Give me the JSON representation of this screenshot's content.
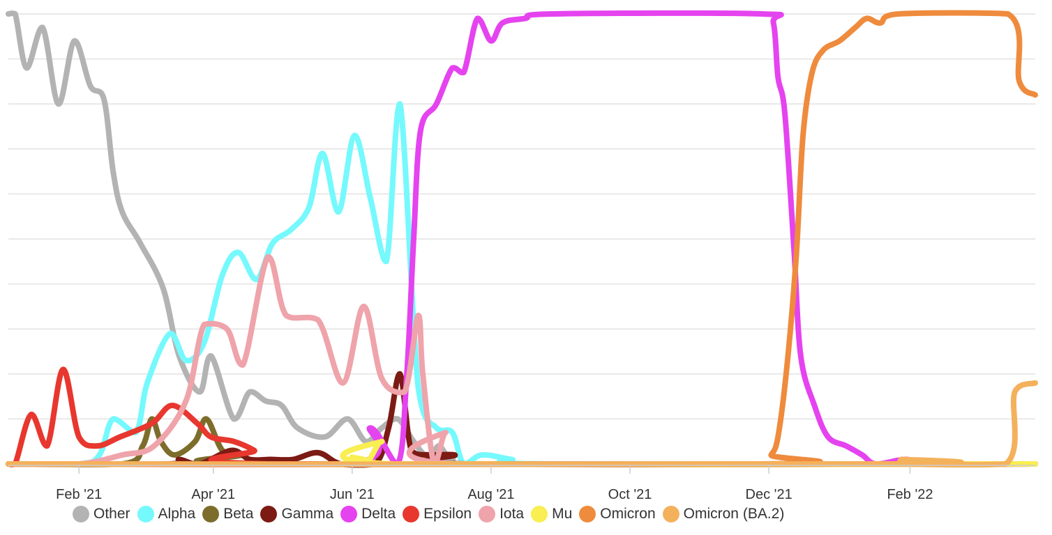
{
  "chart_data": {
    "type": "line",
    "title": "",
    "xlabel": "",
    "ylabel": "",
    "x_ticks": [
      "Feb '21",
      "Apr '21",
      "Jun '21",
      "Aug '21",
      "Oct '21",
      "Dec '21",
      "Feb '22"
    ],
    "x_range": [
      "2021-01-01",
      "2022-03-28"
    ],
    "y_range": [
      0,
      1
    ],
    "grid": "horizontal",
    "legend_position": "bottom",
    "series": [
      {
        "name": "Other",
        "color": "#b3b3b3",
        "points": [
          [
            "2021-01-01",
            1.0
          ],
          [
            "2021-01-04",
            1.0
          ],
          [
            "2021-01-09",
            0.88
          ],
          [
            "2021-01-16",
            0.97
          ],
          [
            "2021-01-23",
            0.8
          ],
          [
            "2021-01-30",
            0.94
          ],
          [
            "2021-02-06",
            0.84
          ],
          [
            "2021-02-12",
            0.81
          ],
          [
            "2021-02-16",
            0.65
          ],
          [
            "2021-02-20",
            0.56
          ],
          [
            "2021-02-28",
            0.49
          ],
          [
            "2021-03-10",
            0.39
          ],
          [
            "2021-03-17",
            0.24
          ],
          [
            "2021-03-26",
            0.16
          ],
          [
            "2021-03-31",
            0.24
          ],
          [
            "2021-04-10",
            0.1
          ],
          [
            "2021-04-17",
            0.16
          ],
          [
            "2021-04-24",
            0.14
          ],
          [
            "2021-05-01",
            0.13
          ],
          [
            "2021-05-08",
            0.08
          ],
          [
            "2021-05-20",
            0.06
          ],
          [
            "2021-05-30",
            0.1
          ],
          [
            "2021-06-07",
            0.05
          ],
          [
            "2021-06-14",
            0.08
          ],
          [
            "2021-06-21",
            0.1
          ],
          [
            "2021-06-28",
            0.05
          ],
          [
            "2021-07-05",
            0.01
          ],
          [
            "2021-07-09",
            0.04
          ],
          [
            "2021-07-15",
            0.01
          ],
          [
            "2021-07-30",
            0.0
          ],
          [
            "2022-03-28",
            0.0
          ]
        ]
      },
      {
        "name": "Alpha",
        "color": "#75f9fd",
        "points": [
          [
            "2021-01-01",
            0.0
          ],
          [
            "2021-02-01",
            0.0
          ],
          [
            "2021-02-10",
            0.02
          ],
          [
            "2021-02-16",
            0.1
          ],
          [
            "2021-02-26",
            0.07
          ],
          [
            "2021-03-03",
            0.18
          ],
          [
            "2021-03-13",
            0.29
          ],
          [
            "2021-03-20",
            0.23
          ],
          [
            "2021-03-28",
            0.27
          ],
          [
            "2021-04-05",
            0.42
          ],
          [
            "2021-04-12",
            0.47
          ],
          [
            "2021-04-20",
            0.41
          ],
          [
            "2021-04-27",
            0.49
          ],
          [
            "2021-05-05",
            0.52
          ],
          [
            "2021-05-13",
            0.57
          ],
          [
            "2021-05-19",
            0.69
          ],
          [
            "2021-05-26",
            0.56
          ],
          [
            "2021-06-02",
            0.73
          ],
          [
            "2021-06-09",
            0.59
          ],
          [
            "2021-06-16",
            0.45
          ],
          [
            "2021-06-22",
            0.8
          ],
          [
            "2021-06-30",
            0.17
          ],
          [
            "2021-07-08",
            0.08
          ],
          [
            "2021-07-15",
            0.07
          ],
          [
            "2021-07-20",
            0.0
          ],
          [
            "2021-07-28",
            0.02
          ],
          [
            "2021-08-10",
            0.01
          ],
          [
            "2021-08-25",
            0.0
          ],
          [
            "2022-03-28",
            0.0
          ]
        ]
      },
      {
        "name": "Beta",
        "color": "#7d6d2b",
        "points": [
          [
            "2021-01-01",
            0.0
          ],
          [
            "2021-02-20",
            0.0
          ],
          [
            "2021-03-01",
            0.04
          ],
          [
            "2021-03-05",
            0.1
          ],
          [
            "2021-03-09",
            0.05
          ],
          [
            "2021-03-15",
            0.02
          ],
          [
            "2021-03-24",
            0.05
          ],
          [
            "2021-03-29",
            0.1
          ],
          [
            "2021-04-05",
            0.03
          ],
          [
            "2021-04-13",
            0.02
          ],
          [
            "2021-04-21",
            0.0
          ],
          [
            "2022-03-28",
            0.0
          ]
        ]
      },
      {
        "name": "Gamma",
        "color": "#7c1a14",
        "points": [
          [
            "2021-01-01",
            0.0
          ],
          [
            "2021-03-12",
            0.0
          ],
          [
            "2021-03-17",
            0.01
          ],
          [
            "2021-03-26",
            0.0
          ],
          [
            "2021-04-09",
            0.03
          ],
          [
            "2021-04-17",
            0.01
          ],
          [
            "2021-04-26",
            0.01
          ],
          [
            "2021-05-06",
            0.01
          ],
          [
            "2021-05-17",
            0.025
          ],
          [
            "2021-05-27",
            0.0
          ],
          [
            "2021-06-11",
            0.0
          ],
          [
            "2021-06-17",
            0.08
          ],
          [
            "2021-06-22",
            0.2
          ],
          [
            "2021-06-27",
            0.03
          ],
          [
            "2021-07-05",
            0.02
          ],
          [
            "2021-07-16",
            0.02
          ],
          [
            "2021-07-23",
            0.0
          ],
          [
            "2022-03-28",
            0.0
          ]
        ]
      },
      {
        "name": "Delta",
        "color": "#e543ef",
        "points": [
          [
            "2021-01-01",
            0.0
          ],
          [
            "2021-05-30",
            0.0
          ],
          [
            "2021-06-09",
            0.08
          ],
          [
            "2021-06-21",
            0.0
          ],
          [
            "2021-06-25",
            0.2
          ],
          [
            "2021-06-28",
            0.5
          ],
          [
            "2021-07-01",
            0.74
          ],
          [
            "2021-07-08",
            0.8
          ],
          [
            "2021-07-15",
            0.88
          ],
          [
            "2021-07-20",
            0.87
          ],
          [
            "2021-07-26",
            0.99
          ],
          [
            "2021-08-01",
            0.94
          ],
          [
            "2021-08-06",
            0.98
          ],
          [
            "2021-08-16",
            0.99
          ],
          [
            "2021-08-28",
            1.0
          ],
          [
            "2021-11-28",
            1.0
          ],
          [
            "2021-12-03",
            0.98
          ],
          [
            "2021-12-05",
            0.86
          ],
          [
            "2021-12-08",
            0.78
          ],
          [
            "2021-12-12",
            0.48
          ],
          [
            "2021-12-15",
            0.24
          ],
          [
            "2021-12-21",
            0.13
          ],
          [
            "2021-12-27",
            0.06
          ],
          [
            "2022-01-04",
            0.04
          ],
          [
            "2022-01-11",
            0.02
          ],
          [
            "2022-01-17",
            0.0
          ],
          [
            "2022-01-30",
            0.01
          ],
          [
            "2022-02-10",
            0.0
          ],
          [
            "2022-03-28",
            0.0
          ]
        ]
      },
      {
        "name": "Epsilon",
        "color": "#e8372e",
        "points": [
          [
            "2021-01-01",
            0.0
          ],
          [
            "2021-01-04",
            0.0
          ],
          [
            "2021-01-11",
            0.11
          ],
          [
            "2021-01-18",
            0.04
          ],
          [
            "2021-01-25",
            0.21
          ],
          [
            "2021-02-01",
            0.06
          ],
          [
            "2021-02-09",
            0.04
          ],
          [
            "2021-02-19",
            0.06
          ],
          [
            "2021-03-05",
            0.09
          ],
          [
            "2021-03-14",
            0.13
          ],
          [
            "2021-03-25",
            0.09
          ],
          [
            "2021-03-31",
            0.06
          ],
          [
            "2021-04-10",
            0.05
          ],
          [
            "2021-04-19",
            0.03
          ],
          [
            "2021-04-27",
            0.0
          ],
          [
            "2022-03-28",
            0.0
          ]
        ]
      },
      {
        "name": "Iota",
        "color": "#efa3aa",
        "points": [
          [
            "2021-01-01",
            0.0
          ],
          [
            "2021-02-01",
            0.0
          ],
          [
            "2021-02-20",
            0.02
          ],
          [
            "2021-03-06",
            0.04
          ],
          [
            "2021-03-20",
            0.14
          ],
          [
            "2021-03-28",
            0.31
          ],
          [
            "2021-04-07",
            0.3
          ],
          [
            "2021-04-14",
            0.22
          ],
          [
            "2021-04-25",
            0.46
          ],
          [
            "2021-05-03",
            0.33
          ],
          [
            "2021-05-17",
            0.32
          ],
          [
            "2021-05-28",
            0.18
          ],
          [
            "2021-06-06",
            0.35
          ],
          [
            "2021-06-14",
            0.19
          ],
          [
            "2021-06-24",
            0.16
          ],
          [
            "2021-06-30",
            0.33
          ],
          [
            "2021-07-02",
            0.2
          ],
          [
            "2021-07-07",
            0.0
          ],
          [
            "2021-07-12",
            0.07
          ],
          [
            "2021-07-16",
            0.0
          ],
          [
            "2022-03-28",
            0.0
          ]
        ]
      },
      {
        "name": "Mu",
        "color": "#f9ee52",
        "points": [
          [
            "2021-01-01",
            0.0
          ],
          [
            "2021-05-27",
            0.0
          ],
          [
            "2021-06-01",
            0.015
          ],
          [
            "2021-06-07",
            0.0
          ],
          [
            "2021-06-14",
            0.05
          ],
          [
            "2021-06-19",
            0.0
          ],
          [
            "2022-03-28",
            0.0
          ]
        ]
      },
      {
        "name": "Omicron",
        "color": "#ef8b3d",
        "points": [
          [
            "2021-01-01",
            0.0
          ],
          [
            "2021-11-28",
            0.0
          ],
          [
            "2021-12-02",
            0.02
          ],
          [
            "2021-12-05",
            0.06
          ],
          [
            "2021-12-09",
            0.22
          ],
          [
            "2021-12-13",
            0.46
          ],
          [
            "2021-12-16",
            0.73
          ],
          [
            "2021-12-20",
            0.87
          ],
          [
            "2021-12-25",
            0.92
          ],
          [
            "2022-01-01",
            0.94
          ],
          [
            "2022-01-08",
            0.97
          ],
          [
            "2022-01-13",
            0.99
          ],
          [
            "2022-01-19",
            0.98
          ],
          [
            "2022-01-27",
            1.0
          ],
          [
            "2022-03-16",
            1.0
          ],
          [
            "2022-03-21",
            0.85
          ],
          [
            "2022-03-28",
            0.82
          ]
        ]
      },
      {
        "name": "Omicron (BA.2)",
        "color": "#f4b15c",
        "points": [
          [
            "2021-01-01",
            0.0
          ],
          [
            "2022-01-25",
            0.0
          ],
          [
            "2022-01-28",
            0.01
          ],
          [
            "2022-02-01",
            0.0
          ],
          [
            "2022-03-15",
            0.0
          ],
          [
            "2022-03-19",
            0.16
          ],
          [
            "2022-03-28",
            0.18
          ]
        ]
      }
    ]
  }
}
